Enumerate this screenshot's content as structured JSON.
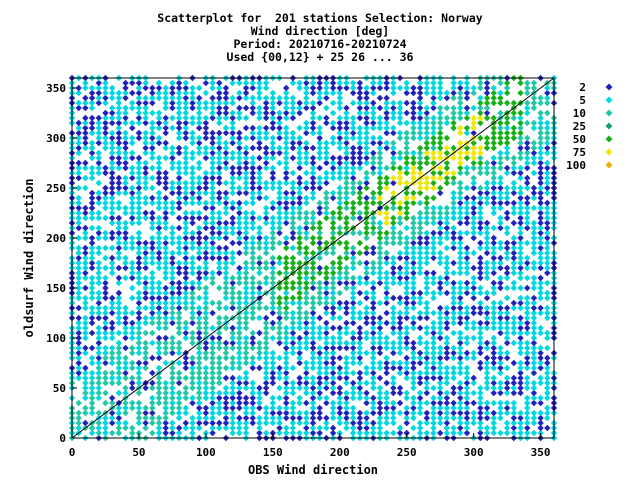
{
  "chart_data": {
    "type": "scatter",
    "title_lines": [
      "Scatterplot for  201 stations Selection: Norway",
      "Wind direction [deg]",
      "Period: 20210716-20210724",
      "Used {00,12} + 25 26 ... 36"
    ],
    "xlabel": "OBS Wind direction",
    "ylabel": "oldsurf Wind direction",
    "xlim": [
      0,
      360
    ],
    "ylim": [
      0,
      360
    ],
    "x_ticks": [
      0,
      50,
      100,
      150,
      200,
      250,
      300,
      350
    ],
    "y_ticks": [
      0,
      50,
      100,
      150,
      200,
      250,
      300,
      350
    ],
    "diagonal_line": true,
    "legend": [
      {
        "label": "2",
        "color": "#2222bb"
      },
      {
        "label": "5",
        "color": "#00d8e0"
      },
      {
        "label": "10",
        "color": "#22c8a8"
      },
      {
        "label": "25",
        "color": "#1aa070"
      },
      {
        "label": "50",
        "color": "#18b018"
      },
      {
        "label": "75",
        "color": "#f0e800"
      },
      {
        "label": "100",
        "color": "#f0b000"
      }
    ],
    "density_description": "Points fill most of the 0-360 domain at count level 5, with a denser band along the diagonal around 200-340 degrees reaching level 50-75.",
    "cluster_centers": [
      {
        "x": 280,
        "y": 295,
        "level": "75"
      },
      {
        "x": 260,
        "y": 270,
        "level": "50"
      },
      {
        "x": 230,
        "y": 240,
        "level": "25"
      },
      {
        "x": 40,
        "y": 50,
        "level": "10"
      }
    ]
  }
}
